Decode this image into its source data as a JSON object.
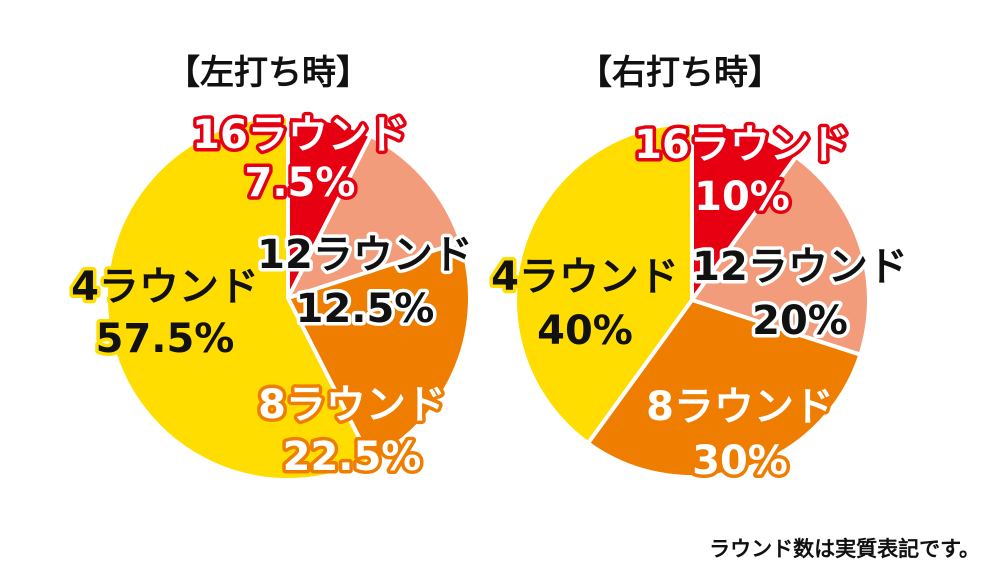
{
  "chart_data": [
    {
      "type": "pie",
      "title": "【左打ち時】",
      "slices": [
        {
          "label": "16ラウンド",
          "value": 7.5,
          "value_text": "7.5%",
          "color": "#e60012",
          "text_color": "#ffffff",
          "outline_color": "#e60012"
        },
        {
          "label": "12ラウンド",
          "value": 12.5,
          "value_text": "12.5%",
          "color": "#f29c7b",
          "text_color": "#111111",
          "outline_color": "#ffffff"
        },
        {
          "label": "8ラウンド",
          "value": 22.5,
          "value_text": "22.5%",
          "color": "#ee7d00",
          "text_color": "#ffffff",
          "outline_color": "#ee7d00"
        },
        {
          "label": "4ラウンド",
          "value": 57.5,
          "value_text": "57.5%",
          "color": "#ffdd00",
          "text_color": "#111111",
          "outline_color": "#ffdd00"
        }
      ]
    },
    {
      "type": "pie",
      "title": "【右打ち時】",
      "slices": [
        {
          "label": "16ラウンド",
          "value": 10,
          "value_text": "10%",
          "color": "#e60012",
          "text_color": "#ffffff",
          "outline_color": "#e60012"
        },
        {
          "label": "12ラウンド",
          "value": 20,
          "value_text": "20%",
          "color": "#f29c7b",
          "text_color": "#111111",
          "outline_color": "#ffffff"
        },
        {
          "label": "8ラウンド",
          "value": 30,
          "value_text": "30%",
          "color": "#ee7d00",
          "text_color": "#ffffff",
          "outline_color": "#ee7d00"
        },
        {
          "label": "4ラウンド",
          "value": 40,
          "value_text": "40%",
          "color": "#ffdd00",
          "text_color": "#111111",
          "outline_color": "#ffdd00"
        }
      ]
    }
  ],
  "footnote": "ラウンド数は実質表記です。"
}
